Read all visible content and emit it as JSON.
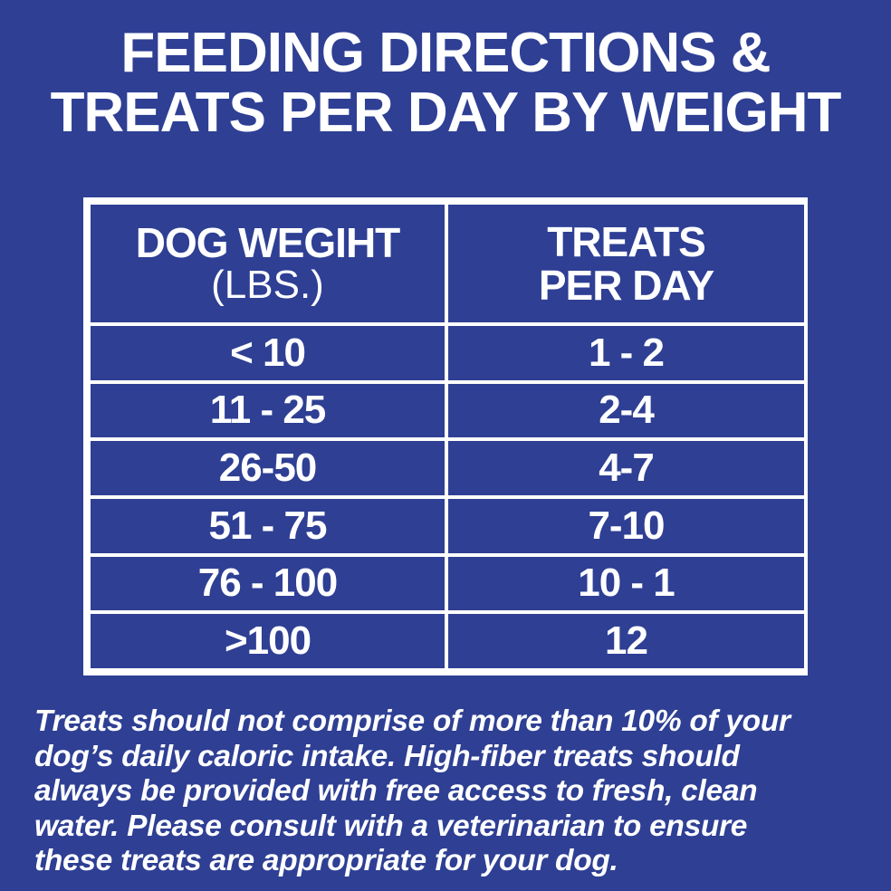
{
  "title": {
    "line1": "FEEDING DIRECTIONS &",
    "line2": "TREATS PER DAY BY WEIGHT"
  },
  "table": {
    "header": {
      "col1_line1": "DOG WEGIHT",
      "col1_sub": "(LBS.)",
      "col2_line1": "TREATS",
      "col2_line2": "PER DAY"
    },
    "rows": [
      {
        "weight": "< 10",
        "treats": "1 - 2"
      },
      {
        "weight": "11 - 25",
        "treats": "2-4"
      },
      {
        "weight": "26-50",
        "treats": "4-7"
      },
      {
        "weight": "51 - 75",
        "treats": "7-10"
      },
      {
        "weight": "76 - 100",
        "treats": "10 - 1"
      },
      {
        "weight": ">100",
        "treats": "12"
      }
    ]
  },
  "note": {
    "lines": [
      "Treats should not comprise of more than 10% of your",
      "dog’s daily caloric intake. High-fiber treats should",
      "always be provided with free access to fresh, clean",
      "water. Please consult with a veterinarian to ensure",
      "these treats are appropriate for your dog."
    ]
  },
  "colors": {
    "background": "#2e3f94",
    "text": "#ffffff",
    "border": "#ffffff"
  }
}
